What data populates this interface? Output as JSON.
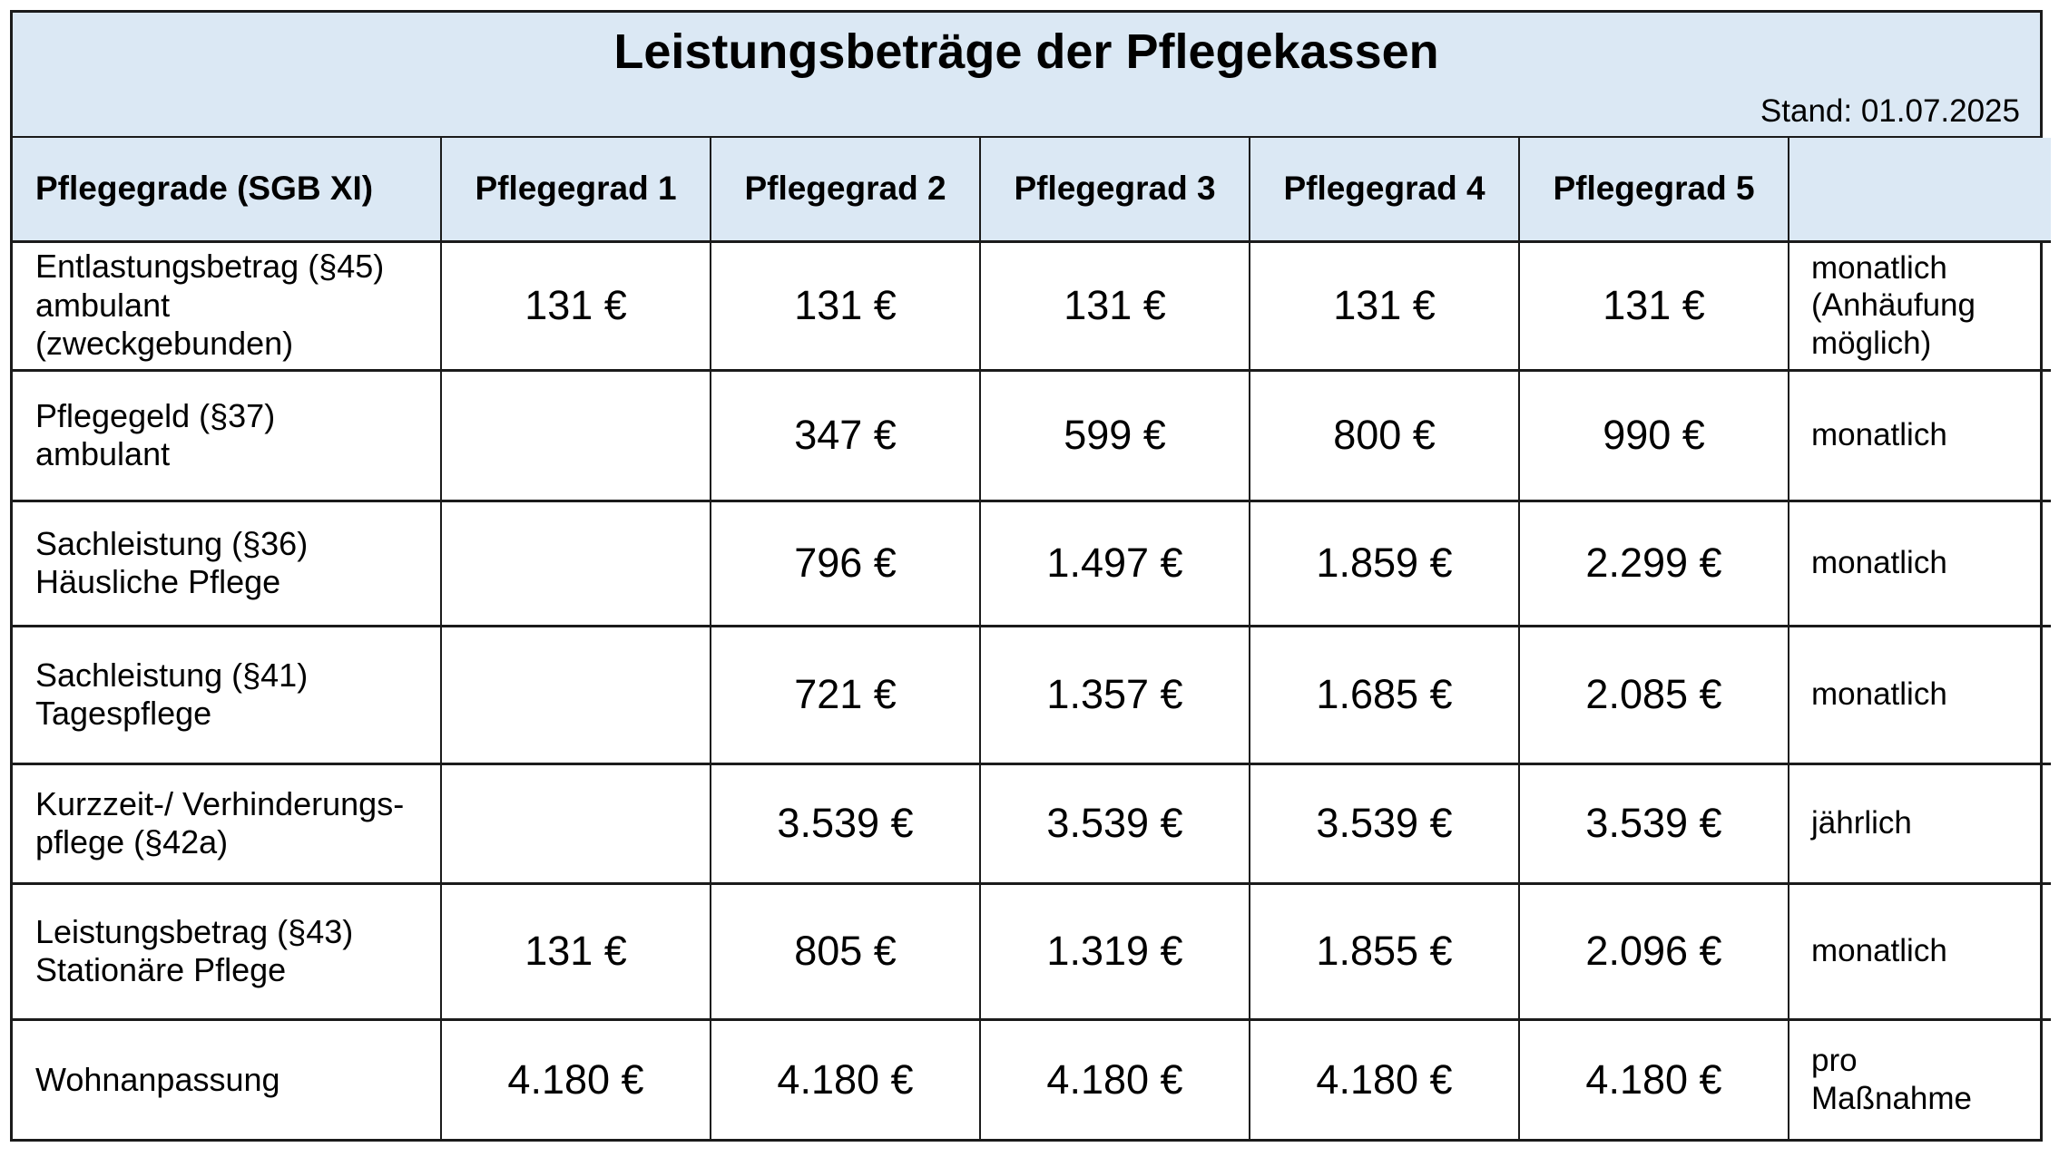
{
  "title": "Leistungsbeträge der Pflegekassen",
  "stand": "Stand: 01.07.2025",
  "colors": {
    "header_bg": "#dbe8f4",
    "border": "#1b1b1b",
    "text": "#000000",
    "page_bg": "#ffffff"
  },
  "table": {
    "header": [
      "Pflegegrade (SGB XI)",
      "Pflegegrad 1",
      "Pflegegrad 2",
      "Pflegegrad 3",
      "Pflegegrad 4",
      "Pflegegrad 5",
      ""
    ],
    "rows": [
      {
        "label_lines": [
          "Entlastungsbetrag (§45)",
          "ambulant",
          "(zweckgebunden)"
        ],
        "values": [
          "131 €",
          "131 €",
          "131 €",
          "131 €",
          "131 €"
        ],
        "period_lines": [
          "monatlich",
          "(Anhäufung",
          "möglich)"
        ]
      },
      {
        "label_lines": [
          "Pflegegeld (§37)",
          "ambulant"
        ],
        "values": [
          "",
          "347 €",
          "599 €",
          "800 €",
          "990 €"
        ],
        "period_lines": [
          "monatlich"
        ]
      },
      {
        "label_lines": [
          "Sachleistung (§36)",
          "Häusliche Pflege"
        ],
        "values": [
          "",
          "796 €",
          "1.497 €",
          "1.859 €",
          "2.299 €"
        ],
        "period_lines": [
          "monatlich"
        ]
      },
      {
        "label_lines": [
          "Sachleistung (§41)",
          "Tagespflege"
        ],
        "values": [
          "",
          "721 €",
          "1.357 €",
          "1.685 €",
          "2.085 €"
        ],
        "period_lines": [
          "monatlich"
        ]
      },
      {
        "label_lines": [
          "Kurzzeit-/ Verhinderungs-",
          "pflege (§42a)"
        ],
        "values": [
          "",
          "3.539 €",
          "3.539 €",
          "3.539 €",
          "3.539 €"
        ],
        "period_lines": [
          "jährlich"
        ]
      },
      {
        "label_lines": [
          "Leistungsbetrag (§43)",
          "Stationäre Pflege"
        ],
        "values": [
          "131 €",
          "805 €",
          "1.319 €",
          "1.855 €",
          "2.096 €"
        ],
        "period_lines": [
          "monatlich"
        ]
      },
      {
        "label_lines": [
          "Wohnanpassung"
        ],
        "values": [
          "4.180 €",
          "4.180 €",
          "4.180 €",
          "4.180 €",
          "4.180 €"
        ],
        "period_lines": [
          "pro",
          "Maßnahme"
        ]
      }
    ]
  }
}
